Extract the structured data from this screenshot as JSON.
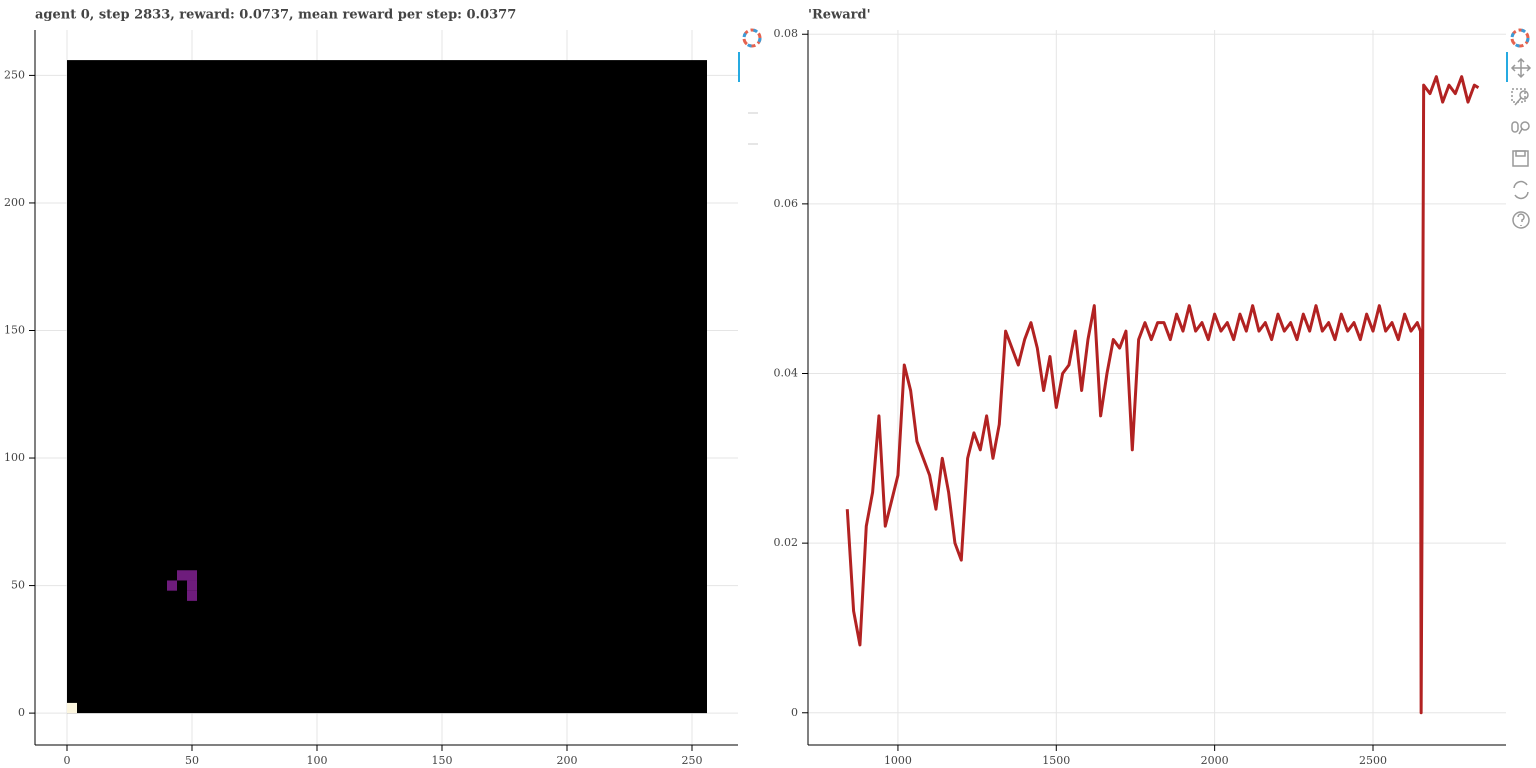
{
  "chart_data": [
    {
      "type": "image",
      "title": "agent 0, step 2833, reward: 0.0737, mean reward per step: 0.0377",
      "width": 256,
      "height": 256,
      "background": "#000000",
      "cell_size": 4,
      "cells": [
        {
          "x": 0,
          "y": 0,
          "color": "#fcf6df"
        },
        {
          "x": 44,
          "y": 52,
          "color": "#6e1c7c"
        },
        {
          "x": 48,
          "y": 52,
          "color": "#6e1c7c"
        },
        {
          "x": 40,
          "y": 48,
          "color": "#6e1c7c"
        },
        {
          "x": 48,
          "y": 48,
          "color": "#6e1c7c"
        },
        {
          "x": 48,
          "y": 44,
          "color": "#6e1c7c"
        }
      ],
      "xlim": [
        -12.8,
        268.4
      ],
      "ylim": [
        -12.5,
        267.8
      ],
      "xticks": [
        0,
        50,
        100,
        150,
        200,
        250
      ],
      "yticks": [
        0,
        50,
        100,
        150,
        200,
        250
      ],
      "grid": true
    },
    {
      "type": "line",
      "title": "'Reward'",
      "color": "#b22222",
      "x": [
        840,
        860,
        880,
        900,
        920,
        940,
        960,
        980,
        1000,
        1020,
        1040,
        1060,
        1080,
        1100,
        1120,
        1140,
        1160,
        1180,
        1200,
        1220,
        1240,
        1260,
        1280,
        1300,
        1320,
        1340,
        1360,
        1380,
        1400,
        1420,
        1440,
        1460,
        1480,
        1500,
        1520,
        1540,
        1560,
        1580,
        1600,
        1620,
        1640,
        1660,
        1680,
        1700,
        1720,
        1740,
        1760,
        1780,
        1800,
        1820,
        1840,
        1860,
        1880,
        1900,
        1920,
        1940,
        1960,
        1980,
        2000,
        2020,
        2040,
        2060,
        2080,
        2100,
        2120,
        2140,
        2160,
        2180,
        2200,
        2220,
        2240,
        2260,
        2280,
        2300,
        2320,
        2340,
        2360,
        2380,
        2400,
        2420,
        2440,
        2460,
        2480,
        2500,
        2520,
        2540,
        2560,
        2580,
        2600,
        2620,
        2640,
        2650,
        2652,
        2655,
        2660,
        2680,
        2700,
        2720,
        2740,
        2760,
        2780,
        2800,
        2820,
        2833
      ],
      "values": [
        0.024,
        0.012,
        0.008,
        0.022,
        0.026,
        0.035,
        0.022,
        0.025,
        0.028,
        0.041,
        0.038,
        0.032,
        0.03,
        0.028,
        0.024,
        0.03,
        0.026,
        0.02,
        0.018,
        0.03,
        0.033,
        0.031,
        0.035,
        0.03,
        0.034,
        0.045,
        0.043,
        0.041,
        0.044,
        0.046,
        0.043,
        0.038,
        0.042,
        0.036,
        0.04,
        0.041,
        0.045,
        0.038,
        0.044,
        0.048,
        0.035,
        0.04,
        0.044,
        0.043,
        0.045,
        0.031,
        0.044,
        0.046,
        0.044,
        0.046,
        0.046,
        0.044,
        0.047,
        0.045,
        0.048,
        0.045,
        0.046,
        0.044,
        0.047,
        0.045,
        0.046,
        0.044,
        0.047,
        0.045,
        0.048,
        0.045,
        0.046,
        0.044,
        0.047,
        0.045,
        0.046,
        0.044,
        0.047,
        0.045,
        0.048,
        0.045,
        0.046,
        0.044,
        0.047,
        0.045,
        0.046,
        0.044,
        0.047,
        0.045,
        0.048,
        0.045,
        0.046,
        0.044,
        0.047,
        0.045,
        0.046,
        0.045,
        0,
        0.024,
        0.074,
        0.073,
        0.075,
        0.072,
        0.074,
        0.073,
        0.075,
        0.072,
        0.074,
        0.0737
      ],
      "xlim": [
        716,
        2920
      ],
      "ylim": [
        -0.0038,
        0.0805
      ],
      "xticks": [
        1000,
        1500,
        2000,
        2500
      ],
      "yticks": [
        0,
        0.02,
        0.04,
        0.06,
        0.08
      ],
      "grid": true
    }
  ]
}
